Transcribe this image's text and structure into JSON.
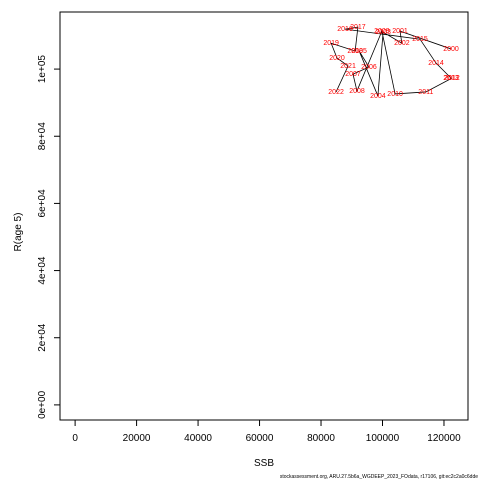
{
  "chart_data": {
    "type": "line",
    "x_label": "SSB",
    "y_label": "R(age 5)",
    "footer": "stockassessment.org, ARU.27.5b6a_WGDEEP_2023_FOdata, r17106, git:ec2c2a0c6dde",
    "color": "#000000",
    "label_color": "#ff0000",
    "labels": [
      "2000",
      "2001",
      "2002",
      "2003",
      "2004",
      "2005",
      "2006",
      "2007",
      "2008",
      "2009",
      "2010",
      "2011",
      "2012",
      "2013",
      "2014",
      "2015",
      "2016",
      "2017",
      "2018",
      "2019",
      "2020",
      "2021",
      "2022"
    ],
    "x": [
      122300,
      105700,
      106300,
      100200,
      98500,
      92400,
      95600,
      90400,
      91700,
      99800,
      104100,
      114100,
      122600,
      122300,
      117400,
      112200,
      87800,
      92000,
      91100,
      83300,
      85200,
      88800,
      84900
    ],
    "values": [
      106000,
      111300,
      107700,
      111000,
      92000,
      105400,
      100600,
      98500,
      93500,
      111300,
      92600,
      93200,
      97300,
      97300,
      101800,
      108900,
      111900,
      112500,
      105400,
      107700,
      103300,
      100900,
      93200
    ],
    "xlim": [
      -4916,
      127816
    ],
    "ylim": [
      -4500,
      117000
    ],
    "xticks": [
      0,
      20000,
      40000,
      60000,
      80000,
      100000,
      120000
    ],
    "yticks": [
      {
        "value": 0,
        "label": "0e+00"
      },
      {
        "value": 20000,
        "label": "2e+04"
      },
      {
        "value": 40000,
        "label": "4e+04"
      },
      {
        "value": 60000,
        "label": "6e+04"
      },
      {
        "value": 80000,
        "label": "8e+04"
      },
      {
        "value": 100000,
        "label": "1e+05"
      }
    ]
  }
}
